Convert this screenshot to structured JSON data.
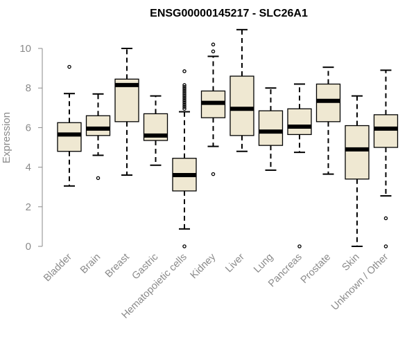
{
  "chart_data": {
    "type": "boxplot",
    "title": "ENSG00000145217 - SLC26A1",
    "xlabel": "",
    "ylabel": "Expression",
    "ylim": [
      0,
      11
    ],
    "yticks": [
      0,
      2,
      4,
      6,
      8,
      10
    ],
    "box_fill": "#efe8d2",
    "categories": [
      "Bladder",
      "Brain",
      "Breast",
      "Gastric",
      "Hematopoietic cells",
      "Kidney",
      "Liver",
      "Lung",
      "Pancreas",
      "Prostate",
      "Skin",
      "Unknown / Other"
    ],
    "boxes": [
      {
        "name": "Bladder",
        "whisker_low": 3.05,
        "q1": 4.8,
        "median": 5.65,
        "q3": 6.25,
        "whisker_high": 7.72,
        "outliers": [
          9.07
        ]
      },
      {
        "name": "Brain",
        "whisker_low": 4.6,
        "q1": 5.6,
        "median": 5.95,
        "q3": 6.6,
        "whisker_high": 7.7,
        "outliers": [
          3.45
        ]
      },
      {
        "name": "Breast",
        "whisker_low": 3.6,
        "q1": 6.3,
        "median": 8.15,
        "q3": 8.45,
        "whisker_high": 10.0,
        "outliers": []
      },
      {
        "name": "Gastric",
        "whisker_low": 4.1,
        "q1": 5.35,
        "median": 5.6,
        "q3": 6.7,
        "whisker_high": 7.6,
        "outliers": []
      },
      {
        "name": "Hematopoietic cells",
        "whisker_low": 0.88,
        "q1": 2.8,
        "median": 3.6,
        "q3": 4.45,
        "whisker_high": 6.8,
        "outliers": [
          0.0,
          6.95,
          7.05,
          7.15,
          7.25,
          7.35,
          7.45,
          7.55,
          7.65,
          7.75,
          7.85,
          7.95,
          8.05,
          8.15,
          8.85
        ]
      },
      {
        "name": "Kidney",
        "whisker_low": 5.05,
        "q1": 6.5,
        "median": 7.25,
        "q3": 7.85,
        "whisker_high": 9.6,
        "outliers": [
          3.65,
          9.85,
          10.2
        ]
      },
      {
        "name": "Liver",
        "whisker_low": 4.8,
        "q1": 5.6,
        "median": 6.95,
        "q3": 8.6,
        "whisker_high": 10.95,
        "outliers": []
      },
      {
        "name": "Lung",
        "whisker_low": 3.85,
        "q1": 5.1,
        "median": 5.8,
        "q3": 6.85,
        "whisker_high": 8.0,
        "outliers": []
      },
      {
        "name": "Pancreas",
        "whisker_low": 4.75,
        "q1": 5.65,
        "median": 6.05,
        "q3": 6.95,
        "whisker_high": 8.2,
        "outliers": [
          0.0
        ]
      },
      {
        "name": "Prostate",
        "whisker_low": 3.65,
        "q1": 6.3,
        "median": 7.35,
        "q3": 8.2,
        "whisker_high": 9.05,
        "outliers": []
      },
      {
        "name": "Skin",
        "whisker_low": 0.0,
        "q1": 3.4,
        "median": 4.9,
        "q3": 6.1,
        "whisker_high": 7.6,
        "outliers": []
      },
      {
        "name": "Unknown / Other",
        "whisker_low": 2.55,
        "q1": 5.0,
        "median": 5.95,
        "q3": 6.65,
        "whisker_high": 8.9,
        "outliers": [
          0.0,
          1.42
        ]
      }
    ]
  }
}
